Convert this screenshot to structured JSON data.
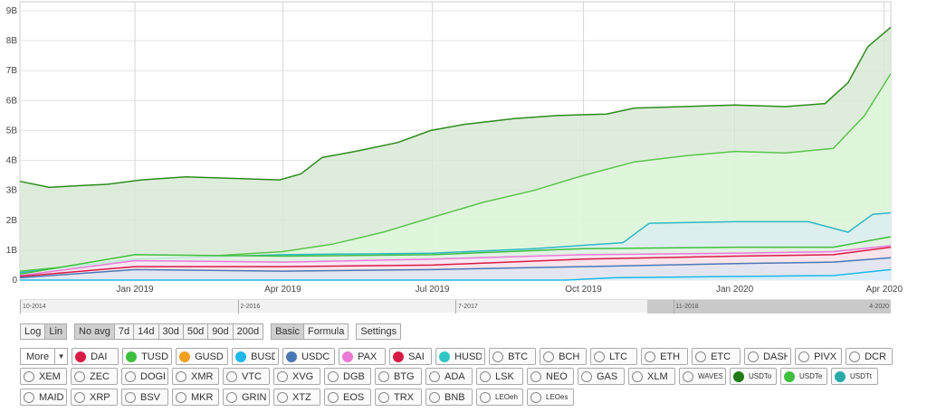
{
  "chart_data": {
    "type": "area",
    "ylim": [
      0,
      9
    ],
    "y_ticks": [
      "0",
      "1B",
      "2B",
      "3B",
      "4B",
      "5B",
      "6B",
      "7B",
      "8B",
      "9B"
    ],
    "x_ticks": [
      {
        "label": "Jan 2019",
        "x": "2019-01-01"
      },
      {
        "label": "Apr 2019",
        "x": "2019-04-01"
      },
      {
        "label": "Jul 2019",
        "x": "2019-07-01"
      },
      {
        "label": "Oct 2019",
        "x": "2019-10-01"
      },
      {
        "label": "Jan 2020",
        "x": "2020-01-01"
      },
      {
        "label": "Apr 2020",
        "x": "2020-04-01"
      }
    ],
    "xlim": [
      "2018-10-23",
      "2020-04-05"
    ],
    "grid": true,
    "series": [
      {
        "name": "USDTo",
        "color": "#2e8b1e",
        "fill": "#d6e9d2",
        "x": [
          "2018-10-23",
          "2018-11-10",
          "2018-11-25",
          "2018-12-15",
          "2019-01-05",
          "2019-02-01",
          "2019-03-01",
          "2019-03-30",
          "2019-04-12",
          "2019-04-25",
          "2019-05-15",
          "2019-06-10",
          "2019-06-30",
          "2019-07-20",
          "2019-08-20",
          "2019-09-15",
          "2019-10-15",
          "2019-11-01",
          "2019-12-01",
          "2020-01-01",
          "2020-02-01",
          "2020-02-25",
          "2020-03-10",
          "2020-03-22",
          "2020-04-05"
        ],
        "y": [
          3.3,
          3.1,
          3.15,
          3.2,
          3.35,
          3.45,
          3.4,
          3.35,
          3.55,
          4.1,
          4.3,
          4.6,
          5.0,
          5.2,
          5.4,
          5.5,
          5.55,
          5.75,
          5.8,
          5.85,
          5.8,
          5.9,
          6.6,
          7.8,
          8.45
        ]
      },
      {
        "name": "USDTe",
        "color": "#5cc44e",
        "fill": "#dff7dc",
        "x": [
          "2018-10-23",
          "2018-12-01",
          "2019-01-15",
          "2019-03-01",
          "2019-04-01",
          "2019-05-01",
          "2019-06-01",
          "2019-07-01",
          "2019-08-01",
          "2019-09-01",
          "2019-10-01",
          "2019-11-01",
          "2019-12-01",
          "2020-01-01",
          "2020-02-01",
          "2020-03-01",
          "2020-03-20",
          "2020-04-05"
        ],
        "y": [
          0.3,
          0.5,
          0.7,
          0.85,
          0.95,
          1.2,
          1.6,
          2.1,
          2.6,
          3.0,
          3.5,
          3.95,
          4.15,
          4.3,
          4.25,
          4.4,
          5.5,
          6.9
        ]
      },
      {
        "name": "USDTt",
        "color": "#2fb7c4",
        "fill": "#dbeef2",
        "x": [
          "2018-10-23",
          "2019-01-01",
          "2019-04-01",
          "2019-07-01",
          "2019-09-01",
          "2019-10-25",
          "2019-11-10",
          "2020-01-01",
          "2020-02-15",
          "2020-03-10",
          "2020-03-25",
          "2020-04-05"
        ],
        "y": [
          0.25,
          0.7,
          0.85,
          0.9,
          1.05,
          1.25,
          1.9,
          1.95,
          1.95,
          1.6,
          2.2,
          2.25
        ]
      },
      {
        "name": "TUSD",
        "color": "#3fbf3f",
        "fill": "#e2f3e0",
        "x": [
          "2018-10-23",
          "2019-01-01",
          "2019-04-01",
          "2019-07-01",
          "2019-10-01",
          "2020-01-01",
          "2020-03-01",
          "2020-04-05"
        ],
        "y": [
          0.2,
          0.85,
          0.8,
          0.85,
          1.05,
          1.1,
          1.1,
          1.45
        ]
      },
      {
        "name": "PAX",
        "color": "#e87ad6",
        "fill": "#fbe3f7",
        "x": [
          "2018-10-23",
          "2019-01-01",
          "2019-04-01",
          "2019-07-01",
          "2019-10-01",
          "2020-01-01",
          "2020-03-01",
          "2020-04-05"
        ],
        "y": [
          0.15,
          0.65,
          0.6,
          0.7,
          0.85,
          0.9,
          0.95,
          1.15
        ]
      },
      {
        "name": "SAI",
        "color": "#d81b46",
        "fill": "#fbe3e8",
        "x": [
          "2018-10-23",
          "2019-01-01",
          "2019-04-01",
          "2019-07-01",
          "2019-10-01",
          "2020-01-01",
          "2020-03-01",
          "2020-04-05"
        ],
        "y": [
          0.12,
          0.45,
          0.45,
          0.5,
          0.7,
          0.8,
          0.85,
          1.1
        ]
      },
      {
        "name": "USDC",
        "color": "#4a78b5",
        "fill": "#dde6f2",
        "x": [
          "2018-10-23",
          "2019-01-01",
          "2019-04-01",
          "2019-07-01",
          "2019-10-01",
          "2020-01-01",
          "2020-03-01",
          "2020-04-05"
        ],
        "y": [
          0.08,
          0.35,
          0.3,
          0.35,
          0.45,
          0.55,
          0.6,
          0.75
        ]
      },
      {
        "name": "BUSD",
        "color": "#1fb8e8",
        "fill": "#d6f0fa",
        "x": [
          "2018-10-23",
          "2019-07-01",
          "2019-09-20",
          "2019-10-20",
          "2020-01-01",
          "2020-03-01",
          "2020-04-05"
        ],
        "y": [
          0.0,
          0.0,
          0.0,
          0.08,
          0.12,
          0.15,
          0.35
        ]
      }
    ]
  },
  "navigator": {
    "labels": [
      "10-2014",
      "2-2016",
      "7-2017",
      "11-2018",
      "4-2020"
    ]
  },
  "controls": {
    "scale": [
      {
        "label": "Log",
        "active": false
      },
      {
        "label": "Lin",
        "active": true
      }
    ],
    "avg": [
      {
        "label": "No avg",
        "active": true
      },
      {
        "label": "7d",
        "active": false
      },
      {
        "label": "14d",
        "active": false
      },
      {
        "label": "30d",
        "active": false
      },
      {
        "label": "50d",
        "active": false
      },
      {
        "label": "90d",
        "active": false
      },
      {
        "label": "200d",
        "active": false
      }
    ],
    "mode": [
      {
        "label": "Basic",
        "active": true
      },
      {
        "label": "Formula",
        "active": false
      }
    ],
    "settings_label": "Settings"
  },
  "assets": {
    "more_label": "More",
    "rows": [
      [
        {
          "label": "DAI",
          "color": "#d81b46"
        },
        {
          "label": "TUSD",
          "color": "#3fbf3f"
        },
        {
          "label": "GUSD",
          "color": "#f2a01f"
        },
        {
          "label": "BUSD",
          "color": "#1fb8e8"
        },
        {
          "label": "USDC",
          "color": "#4a78b5"
        },
        {
          "label": "PAX",
          "color": "#e87ad6"
        },
        {
          "label": "SAI",
          "color": "#d81b46"
        },
        {
          "label": "HUSD",
          "color": "#2fc7c4"
        },
        {
          "label": "BTC",
          "color": ""
        },
        {
          "label": "BCH",
          "color": ""
        },
        {
          "label": "LTC",
          "color": ""
        },
        {
          "label": "ETH",
          "color": ""
        },
        {
          "label": "ETC",
          "color": ""
        },
        {
          "label": "DASH",
          "color": ""
        },
        {
          "label": "PIVX",
          "color": ""
        },
        {
          "label": "DCR",
          "color": ""
        }
      ],
      [
        {
          "label": "XEM",
          "color": ""
        },
        {
          "label": "ZEC",
          "color": ""
        },
        {
          "label": "DOGE",
          "color": ""
        },
        {
          "label": "XMR",
          "color": ""
        },
        {
          "label": "VTC",
          "color": ""
        },
        {
          "label": "XVG",
          "color": ""
        },
        {
          "label": "DGB",
          "color": ""
        },
        {
          "label": "BTG",
          "color": ""
        },
        {
          "label": "ADA",
          "color": ""
        },
        {
          "label": "LSK",
          "color": ""
        },
        {
          "label": "NEO",
          "color": ""
        },
        {
          "label": "GAS",
          "color": ""
        },
        {
          "label": "XLM",
          "color": ""
        },
        {
          "label": "WAVES",
          "color": "",
          "small": true
        },
        {
          "label": "USDTo",
          "color": "#1f7a14",
          "small": true
        },
        {
          "label": "USDTe",
          "color": "#3fbf3f",
          "small": true
        },
        {
          "label": "USDTt",
          "color": "#2aa9a9",
          "small": true
        }
      ],
      [
        {
          "label": "MAID",
          "color": ""
        },
        {
          "label": "XRP",
          "color": ""
        },
        {
          "label": "BSV",
          "color": ""
        },
        {
          "label": "MKR",
          "color": ""
        },
        {
          "label": "GRIN",
          "color": ""
        },
        {
          "label": "XTZ",
          "color": ""
        },
        {
          "label": "EOS",
          "color": ""
        },
        {
          "label": "TRX",
          "color": ""
        },
        {
          "label": "BNB",
          "color": ""
        },
        {
          "label": "LEOeh",
          "color": "",
          "small": true
        },
        {
          "label": "LEOes",
          "color": "",
          "small": true
        }
      ]
    ]
  }
}
